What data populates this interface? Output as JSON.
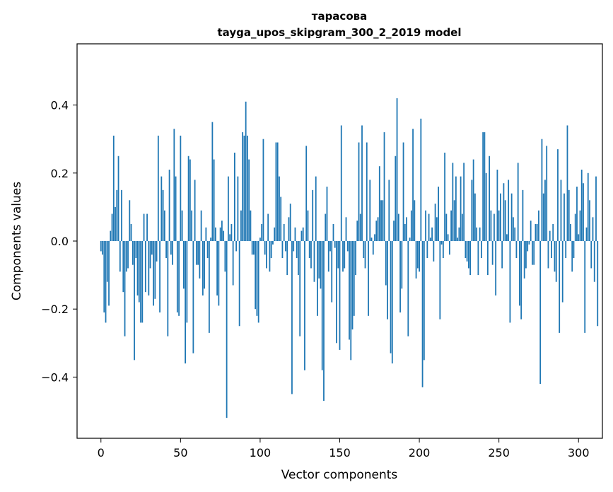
{
  "chart_data": {
    "type": "bar",
    "title": "тарасова",
    "subtitle": "tayga_upos_skipgram_300_2_2019 model",
    "xlabel": "Vector components",
    "ylabel": "Components values",
    "xlim": [
      -15,
      315
    ],
    "ylim": [
      -0.58,
      0.58
    ],
    "xticks": [
      0,
      50,
      100,
      150,
      200,
      250,
      300
    ],
    "xtick_labels": [
      "0",
      "50",
      "100",
      "150",
      "200",
      "250",
      "300"
    ],
    "yticks": [
      -0.4,
      -0.2,
      0.0,
      0.2,
      0.4
    ],
    "ytick_labels": [
      "−0.4",
      "−0.2",
      "0.0",
      "0.2",
      "0.4"
    ],
    "bar_color": "#1f77b4",
    "grid": false,
    "legend": "none",
    "values": [
      -0.03,
      -0.04,
      -0.21,
      -0.24,
      -0.12,
      -0.19,
      0.03,
      0.08,
      0.31,
      0.1,
      0.15,
      0.25,
      -0.09,
      0.15,
      -0.15,
      -0.28,
      -0.09,
      -0.08,
      0.12,
      0.05,
      -0.07,
      -0.35,
      -0.05,
      -0.16,
      -0.18,
      -0.24,
      -0.24,
      0.08,
      -0.15,
      0.08,
      -0.16,
      -0.08,
      -0.04,
      -0.19,
      -0.17,
      -0.06,
      0.31,
      -0.21,
      0.19,
      0.15,
      0.09,
      -0.05,
      -0.28,
      0.21,
      -0.04,
      -0.07,
      0.33,
      0.19,
      -0.21,
      -0.22,
      0.31,
      0.09,
      -0.14,
      -0.36,
      -0.24,
      0.25,
      0.24,
      0.09,
      -0.33,
      0.18,
      -0.07,
      -0.07,
      -0.11,
      0.09,
      -0.16,
      -0.14,
      0.04,
      -0.05,
      -0.27,
      0.01,
      0.35,
      0.24,
      0.04,
      -0.16,
      -0.19,
      0.04,
      0.06,
      0.03,
      -0.09,
      -0.52,
      0.19,
      0.02,
      0.05,
      -0.13,
      0.26,
      -0.03,
      0.19,
      -0.25,
      0.09,
      0.32,
      0.31,
      0.41,
      0.31,
      0.24,
      0.09,
      -0.04,
      -0.04,
      -0.2,
      -0.22,
      -0.24,
      0.01,
      0.05,
      0.3,
      -0.04,
      -0.08,
      0.08,
      -0.09,
      -0.05,
      -0.01,
      0.04,
      0.29,
      0.29,
      0.19,
      0.13,
      -0.05,
      0.05,
      -0.03,
      -0.1,
      0.07,
      0.11,
      -0.45,
      -0.03,
      0.04,
      -0.05,
      -0.1,
      -0.28,
      0.03,
      0.04,
      -0.38,
      0.28,
      0.09,
      -0.05,
      -0.08,
      0.15,
      -0.12,
      0.19,
      -0.22,
      -0.11,
      -0.14,
      -0.38,
      -0.47,
      0.08,
      0.16,
      -0.09,
      -0.03,
      -0.18,
      0.05,
      -0.02,
      -0.3,
      -0.08,
      -0.32,
      0.34,
      -0.09,
      -0.08,
      0.07,
      -0.03,
      -0.29,
      -0.35,
      -0.26,
      -0.22,
      -0.1,
      0.06,
      0.29,
      0.08,
      0.34,
      -0.05,
      -0.08,
      0.29,
      -0.22,
      0.18,
      0.01,
      -0.04,
      0.02,
      0.06,
      0.07,
      0.22,
      0.12,
      0.12,
      0.32,
      -0.13,
      -0.23,
      0.18,
      -0.33,
      -0.36,
      0.06,
      0.25,
      0.42,
      0.08,
      -0.21,
      -0.14,
      0.29,
      0.05,
      0.07,
      -0.28,
      0.01,
      0.09,
      0.33,
      0.12,
      -0.11,
      -0.08,
      -0.09,
      0.36,
      -0.43,
      -0.35,
      0.09,
      -0.05,
      0.08,
      0.01,
      0.04,
      -0.06,
      0.11,
      0.07,
      0.16,
      -0.23,
      -0.01,
      -0.05,
      0.26,
      0.08,
      0.02,
      -0.04,
      0.09,
      0.23,
      0.12,
      0.19,
      0.01,
      0.04,
      0.19,
      0.08,
      0.23,
      -0.05,
      -0.06,
      -0.08,
      -0.1,
      0.18,
      0.24,
      0.14,
      0.04,
      -0.1,
      0.04,
      -0.05,
      0.32,
      0.32,
      0.2,
      -0.1,
      0.25,
      0.09,
      -0.07,
      0.08,
      -0.16,
      0.21,
      0.09,
      0.14,
      -0.08,
      0.17,
      0.12,
      0.02,
      0.18,
      -0.24,
      0.14,
      0.07,
      0.04,
      -0.05,
      0.23,
      -0.19,
      -0.23,
      0.15,
      -0.11,
      -0.08,
      -0.03,
      -0.01,
      0.06,
      -0.07,
      -0.07,
      0.05,
      0.05,
      0.09,
      -0.42,
      0.3,
      0.14,
      0.18,
      0.28,
      -0.08,
      0.03,
      -0.05,
      0.05,
      -0.09,
      -0.12,
      0.27,
      -0.27,
      0.18,
      -0.18,
      0.14,
      -0.05,
      0.34,
      0.15,
      0.05,
      -0.09,
      -0.05,
      0.08,
      0.16,
      0.02,
      0.09,
      0.21,
      0.17,
      -0.27,
      0.04,
      0.2,
      0.12,
      -0.08,
      0.07,
      -0.12,
      0.19,
      -0.25
    ]
  }
}
